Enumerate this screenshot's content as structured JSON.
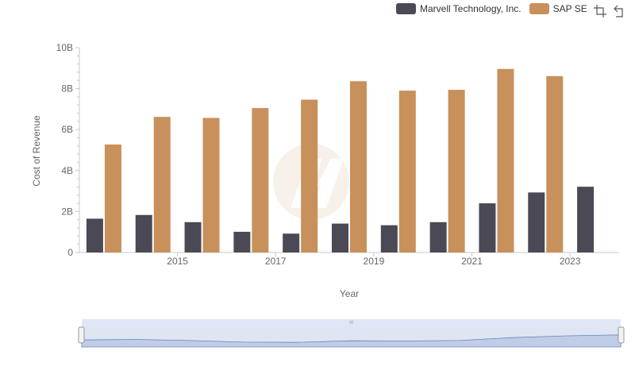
{
  "legend": {
    "items": [
      {
        "label": "Marvell Technology, Inc.",
        "color": "#4a4955"
      },
      {
        "label": "SAP SE",
        "color": "#c8905b"
      }
    ],
    "position": "top-right"
  },
  "toolbar": {
    "icons": [
      "zoom-select-icon",
      "zoom-reset-icon"
    ]
  },
  "chart_data": {
    "type": "bar",
    "x": [
      2014,
      2015,
      2016,
      2017,
      2018,
      2019,
      2020,
      2021,
      2022,
      2023,
      2024
    ],
    "xticks": [
      "2015",
      "2017",
      "2019",
      "2021",
      "2023"
    ],
    "xtick_values": [
      2015,
      2017,
      2019,
      2021,
      2023
    ],
    "series": [
      {
        "name": "Marvell Technology, Inc.",
        "color": "#4a4955",
        "values": [
          1.65,
          1.83,
          1.48,
          1.01,
          0.92,
          1.41,
          1.33,
          1.48,
          2.4,
          2.93,
          3.21
        ]
      },
      {
        "name": "SAP SE",
        "color": "#c8905b",
        "values": [
          5.27,
          6.62,
          6.57,
          7.05,
          7.46,
          8.36,
          7.9,
          7.94,
          8.96,
          8.61,
          null
        ]
      }
    ],
    "yticks": [
      "0",
      "2B",
      "4B",
      "6B",
      "8B",
      "10B"
    ],
    "ytick_values": [
      0,
      2,
      4,
      6,
      8,
      10
    ],
    "ylim": [
      0,
      10
    ],
    "xlabel": "Year",
    "ylabel": "Cost of Revenue",
    "grid": false
  },
  "navigator": {
    "series": [
      1.65,
      1.83,
      1.48,
      1.01,
      0.92,
      1.41,
      1.33,
      1.48,
      2.4,
      2.93,
      3.21
    ],
    "range": [
      0,
      1
    ],
    "grip_label": "III"
  }
}
